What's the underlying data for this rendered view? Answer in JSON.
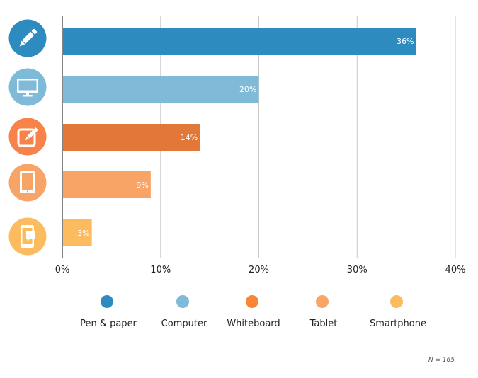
{
  "chart_data": {
    "type": "bar",
    "orientation": "horizontal",
    "categories": [
      "Pen & paper",
      "Computer",
      "Whiteboard",
      "Tablet",
      "Smartphone"
    ],
    "values": [
      36,
      20,
      14,
      9,
      3
    ],
    "data_labels": [
      "36%",
      "20%",
      "14%",
      "9%",
      "3%"
    ],
    "icons": [
      "pencil-icon",
      "monitor-icon",
      "edit-square-icon",
      "tablet-icon",
      "smartphone-chat-icon"
    ],
    "bar_colors": [
      "#2e8bc0",
      "#7fbad8",
      "#e2773a",
      "#f7a466",
      "#fbbb5e"
    ],
    "icon_colors": [
      "#2e8bc0",
      "#7fbad8",
      "#f8834a",
      "#f7a466",
      "#fbbb5e"
    ],
    "legend_colors": [
      "#2e8bc0",
      "#7fbad8",
      "#fb8533",
      "#fca466",
      "#fbbb5e"
    ],
    "xlim": [
      0,
      40
    ],
    "xticks": [
      0,
      10,
      20,
      30,
      40
    ],
    "xtick_labels": [
      "0%",
      "10%",
      "20%",
      "30%",
      "40%"
    ],
    "grid": true,
    "legend_placement": "bottom",
    "annotation": "N = 165"
  }
}
